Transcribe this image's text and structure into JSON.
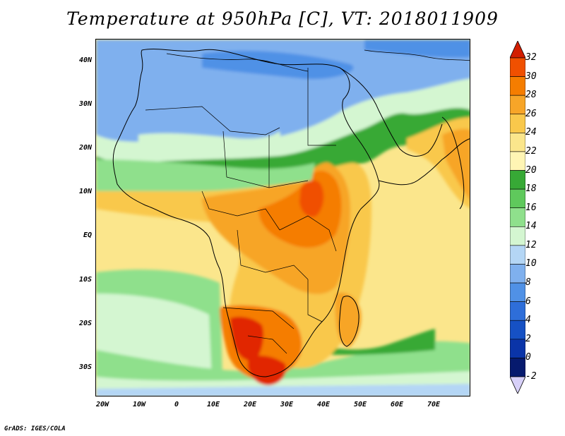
{
  "title": "Temperature at 950hPa [C], VT: 2018011909",
  "credit": "GrADS: IGES/COLA",
  "axes": {
    "lat_labels": [
      "40N",
      "30N",
      "20N",
      "10N",
      "EQ",
      "10S",
      "20S",
      "30S"
    ],
    "lon_labels": [
      "20W",
      "10W",
      "0",
      "10E",
      "20E",
      "30E",
      "40E",
      "50E",
      "60E",
      "70E"
    ]
  },
  "colorbar": {
    "labels": [
      "32",
      "30",
      "28",
      "26",
      "24",
      "22",
      "20",
      "18",
      "16",
      "14",
      "12",
      "10",
      "8",
      "6",
      "4",
      "2",
      "0",
      "-2"
    ],
    "colors": [
      "#e12800",
      "#f05000",
      "#f57d00",
      "#f7a528",
      "#f9c84b",
      "#fbe68c",
      "#fff5b4",
      "#37a936",
      "#5fc95c",
      "#8fe08c",
      "#d4f6d1",
      "#b4d6f5",
      "#7fb0ee",
      "#5091e6",
      "#2e6ed9",
      "#1651c4",
      "#0a34a8",
      "#061a6e"
    ],
    "top_arrow_color": "#d21e00",
    "bottom_arrow_color": "#d7d0f8"
  },
  "palette": {
    "ocean_warm": "#fbe68c",
    "ocean_cool": "#8fe08c",
    "cold": "#7fb0ee",
    "hot": "#f05000",
    "hottest": "#e12800"
  }
}
